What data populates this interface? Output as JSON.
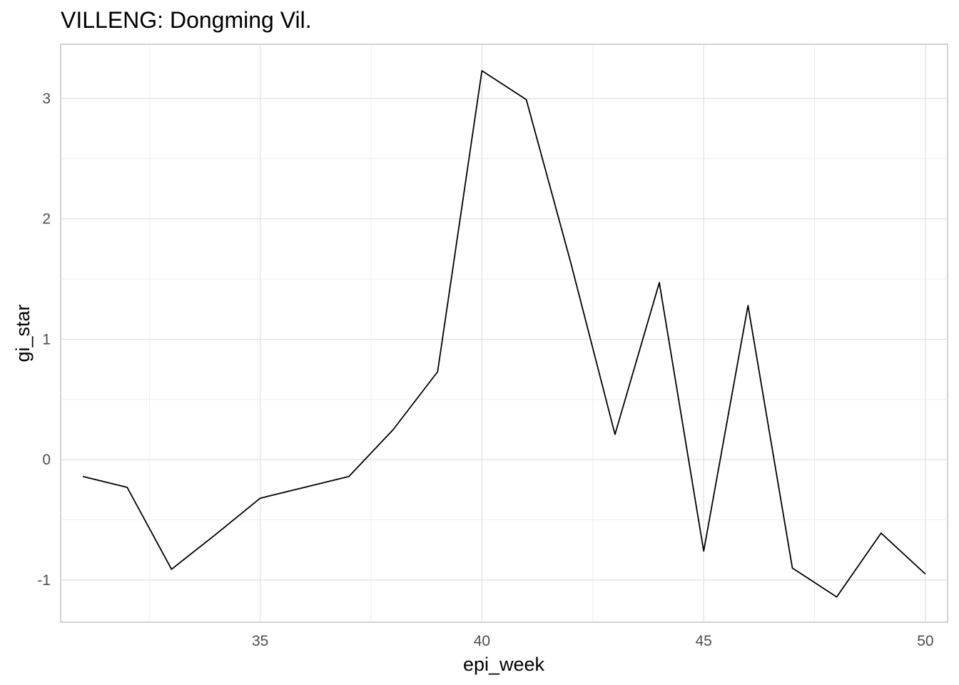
{
  "chart_data": {
    "type": "line",
    "title": "VILLENG: Dongming Vil.",
    "xlabel": "epi_week",
    "ylabel": "gi_star",
    "xlim": [
      30.5,
      50.5
    ],
    "ylim": [
      -1.35,
      3.45
    ],
    "x_ticks": [
      35,
      40,
      45,
      50
    ],
    "x_tick_labels": [
      "35",
      "40",
      "45",
      "50"
    ],
    "x_minor": [
      32.5,
      37.5,
      42.5,
      47.5
    ],
    "y_ticks": [
      -1,
      0,
      1,
      2,
      3
    ],
    "y_tick_labels": [
      "-1",
      "0",
      "1",
      "2",
      "3"
    ],
    "y_minor": [
      -0.5,
      0.5,
      1.5,
      2.5
    ],
    "grid": true,
    "line_color": "#000000",
    "series": [
      {
        "x": [
          31,
          32,
          33,
          34,
          35,
          36,
          37,
          38,
          39,
          40,
          41,
          42,
          43,
          44,
          45,
          46,
          47,
          48,
          49,
          50
        ],
        "values": [
          -0.14,
          -0.23,
          -0.91,
          -0.62,
          -0.32,
          -0.23,
          -0.14,
          0.25,
          0.73,
          3.23,
          2.99,
          1.64,
          0.21,
          1.47,
          -0.76,
          1.28,
          -0.9,
          -1.14,
          -0.61,
          -0.95
        ]
      }
    ]
  }
}
